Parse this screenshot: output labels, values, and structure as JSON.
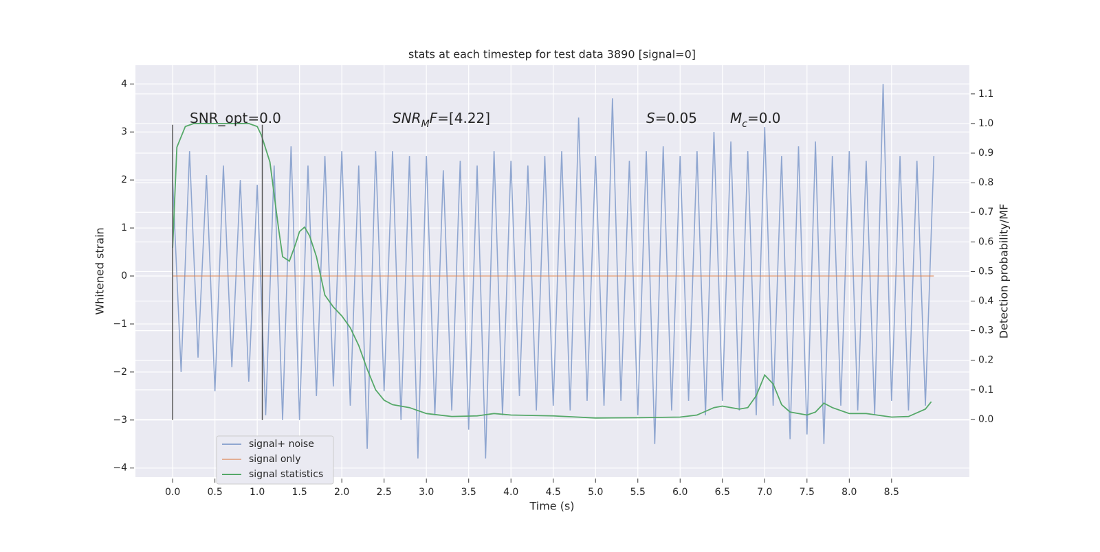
{
  "chart_data": {
    "type": "line",
    "title": "stats at each timestep for test data 3890 [signal=0]",
    "x_label": "Time (s)",
    "y_label": "Whitened strain",
    "y2_label": "Detection probability/MF",
    "xlim": [
      -0.44,
      9.42
    ],
    "ylim": [
      -4.19,
      4.39
    ],
    "y2lim": [
      -0.195,
      1.197
    ],
    "xticks": [
      {
        "value": 0,
        "label": "0.0"
      },
      0.5,
      {
        "value": 1,
        "label": "1.0"
      },
      1.5,
      {
        "value": 2,
        "label": "2.0"
      },
      2.5,
      {
        "value": 3,
        "label": "3.0"
      },
      3.5,
      {
        "value": 4,
        "label": "4.0"
      },
      4.5,
      {
        "value": 5,
        "label": "5.0"
      },
      5.5,
      {
        "value": 6,
        "label": "6.0"
      },
      6.5,
      {
        "value": 7,
        "label": "7.0"
      },
      7.5,
      {
        "value": 8,
        "label": "8.0"
      },
      8.5
    ],
    "yticks": [
      {
        "value": -4,
        "label": "−4"
      },
      {
        "value": -3,
        "label": "−3"
      },
      {
        "value": -2,
        "label": "−2"
      },
      {
        "value": -1,
        "label": "−1"
      },
      0,
      1,
      2,
      3,
      4
    ],
    "y2ticks": [
      {
        "value": 0,
        "label": "0.0"
      },
      0.1,
      0.2,
      0.3,
      0.4,
      0.5,
      0.6,
      0.7,
      0.8,
      0.9,
      {
        "value": 1,
        "label": "1.0"
      },
      1.1
    ],
    "grid": true,
    "legend": "lower left",
    "vlines": [
      0,
      1.06
    ],
    "vline_span": [
      -3,
      3.15
    ],
    "vline_color": "#555555",
    "annotations": [
      [
        {
          "text": "SNR_opt=0.0"
        }
      ],
      [
        {
          "text": "SNR",
          "italic": true
        },
        {
          "text": "M",
          "italic": true,
          "sub": true
        },
        {
          "text": "F",
          "italic": true
        },
        {
          "text": "=[4.22]"
        }
      ],
      [
        {
          "text": "S",
          "italic": true
        },
        {
          "text": "=0.05"
        }
      ],
      [
        {
          "text": "M",
          "italic": true
        },
        {
          "text": "c",
          "italic": true,
          "sub": true
        },
        {
          "text": "=0.0"
        }
      ]
    ],
    "series": [
      {
        "name": "signal+ noise",
        "color": "#8fa6d0",
        "x": [
          0,
          0.1,
          0.2,
          0.3,
          0.4,
          0.5,
          0.6,
          0.7,
          0.8,
          0.9,
          1,
          1.1,
          1.2,
          1.3,
          1.4,
          1.5,
          1.6,
          1.7,
          1.8,
          1.9,
          2,
          2.1,
          2.2,
          2.3,
          2.4,
          2.5,
          2.6,
          2.7,
          2.8,
          2.9,
          3,
          3.1,
          3.2,
          3.3,
          3.4,
          3.5,
          3.6,
          3.7,
          3.8,
          3.9,
          4,
          4.1,
          4.2,
          4.3,
          4.4,
          4.5,
          4.6,
          4.7,
          4.8,
          4.9,
          5,
          5.1,
          5.2,
          5.3,
          5.4,
          5.5,
          5.6,
          5.7,
          5.8,
          5.9,
          6,
          6.1,
          6.2,
          6.3,
          6.4,
          6.5,
          6.6,
          6.7,
          6.8,
          6.9,
          7,
          7.1,
          7.2,
          7.3,
          7.4,
          7.5,
          7.6,
          7.7,
          7.8,
          7.9,
          8,
          8.1,
          8.2,
          8.3,
          8.4,
          8.5,
          8.6,
          8.7,
          8.8,
          8.9,
          9
        ],
        "values": [
          2.0,
          -2.0,
          2.6,
          -1.7,
          2.1,
          -2.4,
          2.3,
          -1.9,
          2.0,
          -2.2,
          1.9,
          -2.9,
          2.3,
          -3.0,
          2.7,
          -3.0,
          2.3,
          -2.5,
          2.5,
          -2.3,
          2.6,
          -2.7,
          2.3,
          -3.6,
          2.6,
          -2.4,
          2.6,
          -3.0,
          2.5,
          -3.8,
          2.5,
          -2.9,
          2.2,
          -2.8,
          2.4,
          -3.2,
          2.3,
          -3.8,
          2.6,
          -2.9,
          2.4,
          -2.5,
          2.3,
          -2.8,
          2.5,
          -2.7,
          2.6,
          -2.8,
          3.3,
          -2.6,
          2.5,
          -2.7,
          3.7,
          -2.6,
          2.4,
          -2.9,
          2.6,
          -3.5,
          2.7,
          -2.8,
          2.5,
          -2.6,
          2.6,
          -2.9,
          3.0,
          -2.6,
          2.8,
          -2.8,
          2.6,
          -2.9,
          3.1,
          -2.7,
          2.5,
          -3.4,
          2.7,
          -3.3,
          2.8,
          -3.5,
          2.5,
          -2.7,
          2.6,
          -2.8,
          2.4,
          -2.9,
          4.0,
          -2.6,
          2.5,
          -2.8,
          2.4,
          -2.7,
          2.5
        ]
      },
      {
        "name": "signal only",
        "color": "#dd8452",
        "x": [
          0,
          9
        ],
        "values": [
          0,
          0
        ]
      },
      {
        "name": "signal statistics",
        "color": "#55a868",
        "axis": "y2",
        "x": [
          0,
          0.05,
          0.15,
          0.25,
          0.5,
          0.75,
          0.9,
          1,
          1.05,
          1.15,
          1.25,
          1.3,
          1.38,
          1.45,
          1.5,
          1.56,
          1.62,
          1.7,
          1.8,
          1.9,
          2,
          2.1,
          2.2,
          2.3,
          2.4,
          2.5,
          2.6,
          2.8,
          3,
          3.3,
          3.6,
          3.8,
          4,
          4.5,
          5,
          5.5,
          6,
          6.2,
          6.4,
          6.5,
          6.7,
          6.8,
          6.9,
          7,
          7.1,
          7.2,
          7.3,
          7.5,
          7.6,
          7.7,
          7.8,
          8,
          8.2,
          8.5,
          8.7,
          8.9,
          8.97
        ],
        "values": [
          0.58,
          0.92,
          0.99,
          1.0,
          1.0,
          1.0,
          1.0,
          0.99,
          0.96,
          0.87,
          0.65,
          0.55,
          0.535,
          0.59,
          0.635,
          0.65,
          0.62,
          0.55,
          0.42,
          0.38,
          0.35,
          0.31,
          0.25,
          0.17,
          0.1,
          0.065,
          0.05,
          0.04,
          0.02,
          0.01,
          0.012,
          0.02,
          0.015,
          0.012,
          0.005,
          0.006,
          0.008,
          0.015,
          0.04,
          0.045,
          0.035,
          0.04,
          0.08,
          0.15,
          0.12,
          0.05,
          0.025,
          0.015,
          0.025,
          0.055,
          0.04,
          0.02,
          0.02,
          0.008,
          0.01,
          0.035,
          0.06
        ]
      }
    ]
  }
}
